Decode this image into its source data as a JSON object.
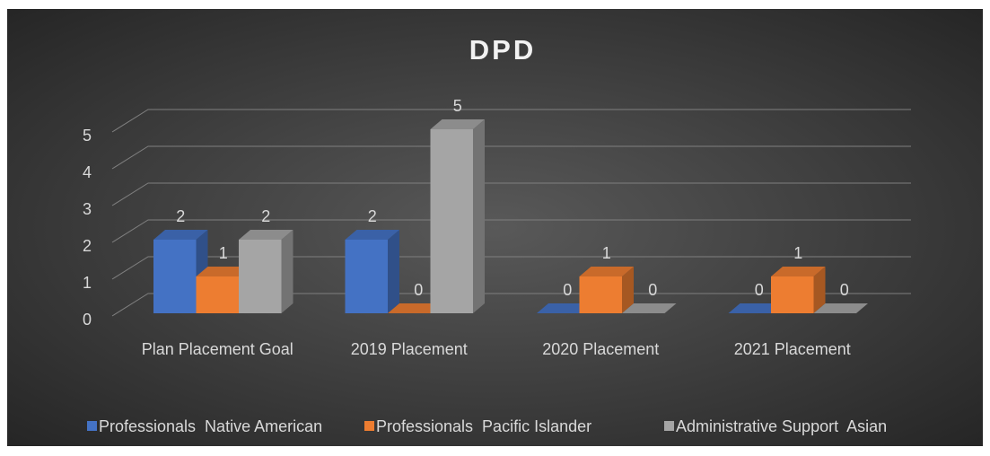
{
  "chart_data": {
    "type": "bar3d",
    "title": "DPD",
    "categories": [
      "Plan Placement Goal",
      "2019 Placement",
      "2020 Placement",
      "2021 Placement"
    ],
    "series": [
      {
        "name": "Professionals  Native American",
        "color": "#4472c4",
        "values": [
          2,
          2,
          0,
          0
        ]
      },
      {
        "name": "Professionals  Pacific Islander",
        "color": "#ed7d31",
        "values": [
          1,
          0,
          1,
          1
        ]
      },
      {
        "name": "Administrative Support  Asian",
        "color": "#a5a5a5",
        "values": [
          2,
          5,
          0,
          0
        ]
      }
    ],
    "ylim": [
      0,
      5
    ],
    "yticks": [
      0,
      1,
      2,
      3,
      4,
      5
    ],
    "grid": true,
    "legend": "bottom"
  }
}
